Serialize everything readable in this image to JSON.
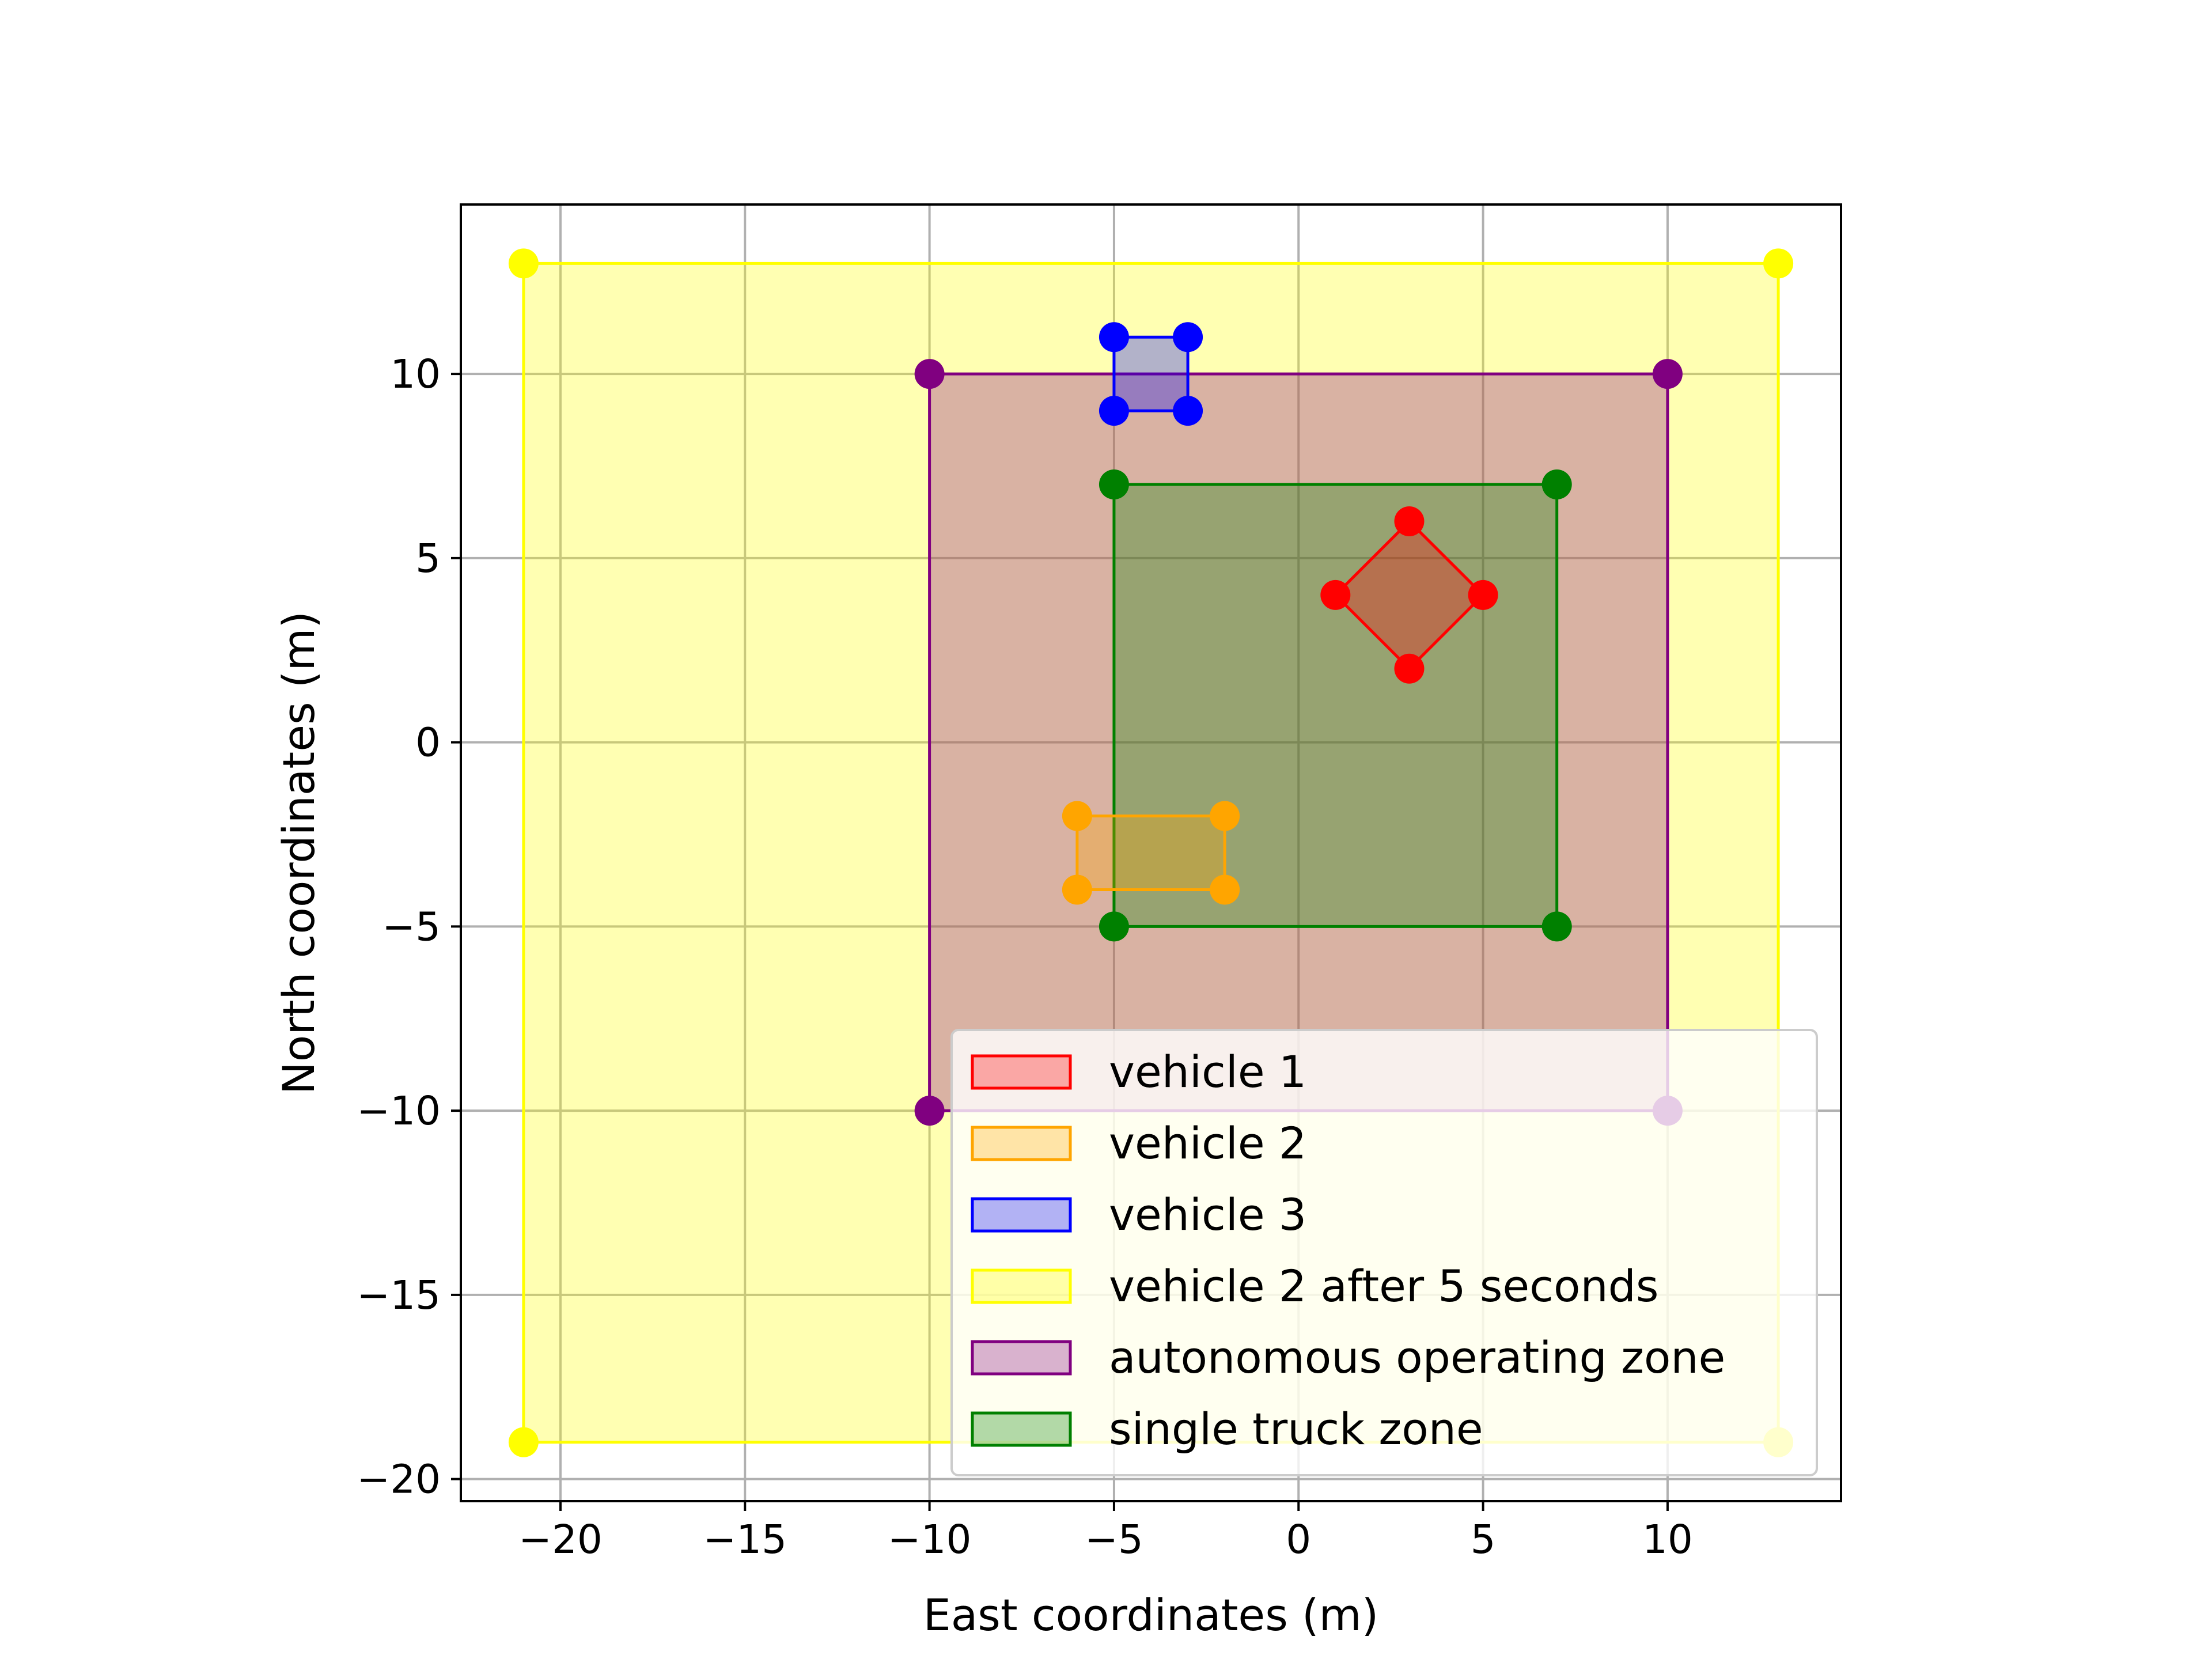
{
  "chart_data": {
    "type": "scatter",
    "xlabel": "East coordinates (m)",
    "ylabel": "North coordinates (m)",
    "xlim": [
      -22.7,
      14.7
    ],
    "ylim": [
      -20.6,
      14.6
    ],
    "grid": true,
    "legend_position": "lower-right",
    "xticks": [
      {
        "value": -20,
        "label": "−20"
      },
      {
        "value": -15,
        "label": "−15"
      },
      {
        "value": -10,
        "label": "−10"
      },
      {
        "value": -5,
        "label": "−5"
      },
      {
        "value": 0,
        "label": "0"
      },
      {
        "value": 5,
        "label": "5"
      },
      {
        "value": 10,
        "label": "10"
      }
    ],
    "yticks": [
      {
        "value": 10,
        "label": "10"
      },
      {
        "value": 5,
        "label": "5"
      },
      {
        "value": 0,
        "label": "0"
      },
      {
        "value": -5,
        "label": "−5"
      },
      {
        "value": -10,
        "label": "−10"
      },
      {
        "value": -15,
        "label": "−15"
      },
      {
        "value": -20,
        "label": "−20"
      }
    ],
    "series": [
      {
        "name": "vehicle 2 after 5 seconds",
        "color": "#ffff00",
        "fill_alpha": 0.3,
        "points": [
          [
            -21,
            13
          ],
          [
            13,
            13
          ],
          [
            13,
            -19
          ],
          [
            -21,
            -19
          ]
        ]
      },
      {
        "name": "autonomous operating zone",
        "color": "#800080",
        "fill_alpha": 0.3,
        "points": [
          [
            -10,
            10
          ],
          [
            10,
            10
          ],
          [
            10,
            -10
          ],
          [
            -10,
            -10
          ]
        ]
      },
      {
        "name": "single truck zone",
        "color": "#008000",
        "fill_alpha": 0.3,
        "points": [
          [
            -5,
            7
          ],
          [
            7,
            7
          ],
          [
            7,
            -5
          ],
          [
            -5,
            -5
          ]
        ]
      },
      {
        "name": "vehicle 1",
        "color": "#ff0000",
        "fill_alpha": 0.3,
        "points": [
          [
            3,
            6
          ],
          [
            5,
            4
          ],
          [
            3,
            2
          ],
          [
            1,
            4
          ]
        ]
      },
      {
        "name": "vehicle 2",
        "color": "#ffa500",
        "fill_alpha": 0.3,
        "points": [
          [
            -6,
            -2
          ],
          [
            -2,
            -2
          ],
          [
            -2,
            -4
          ],
          [
            -6,
            -4
          ]
        ]
      },
      {
        "name": "vehicle 3",
        "color": "#0000ff",
        "fill_alpha": 0.3,
        "points": [
          [
            -5,
            11
          ],
          [
            -3,
            11
          ],
          [
            -3,
            9
          ],
          [
            -5,
            9
          ]
        ]
      }
    ],
    "legend": [
      {
        "label": "vehicle 1",
        "color": "#ff0000"
      },
      {
        "label": "vehicle 2",
        "color": "#ffa500"
      },
      {
        "label": "vehicle 3",
        "color": "#0000ff"
      },
      {
        "label": "vehicle 2 after 5 seconds",
        "color": "#ffff00"
      },
      {
        "label": "autonomous operating zone",
        "color": "#800080"
      },
      {
        "label": "single truck zone",
        "color": "#008000"
      }
    ]
  }
}
